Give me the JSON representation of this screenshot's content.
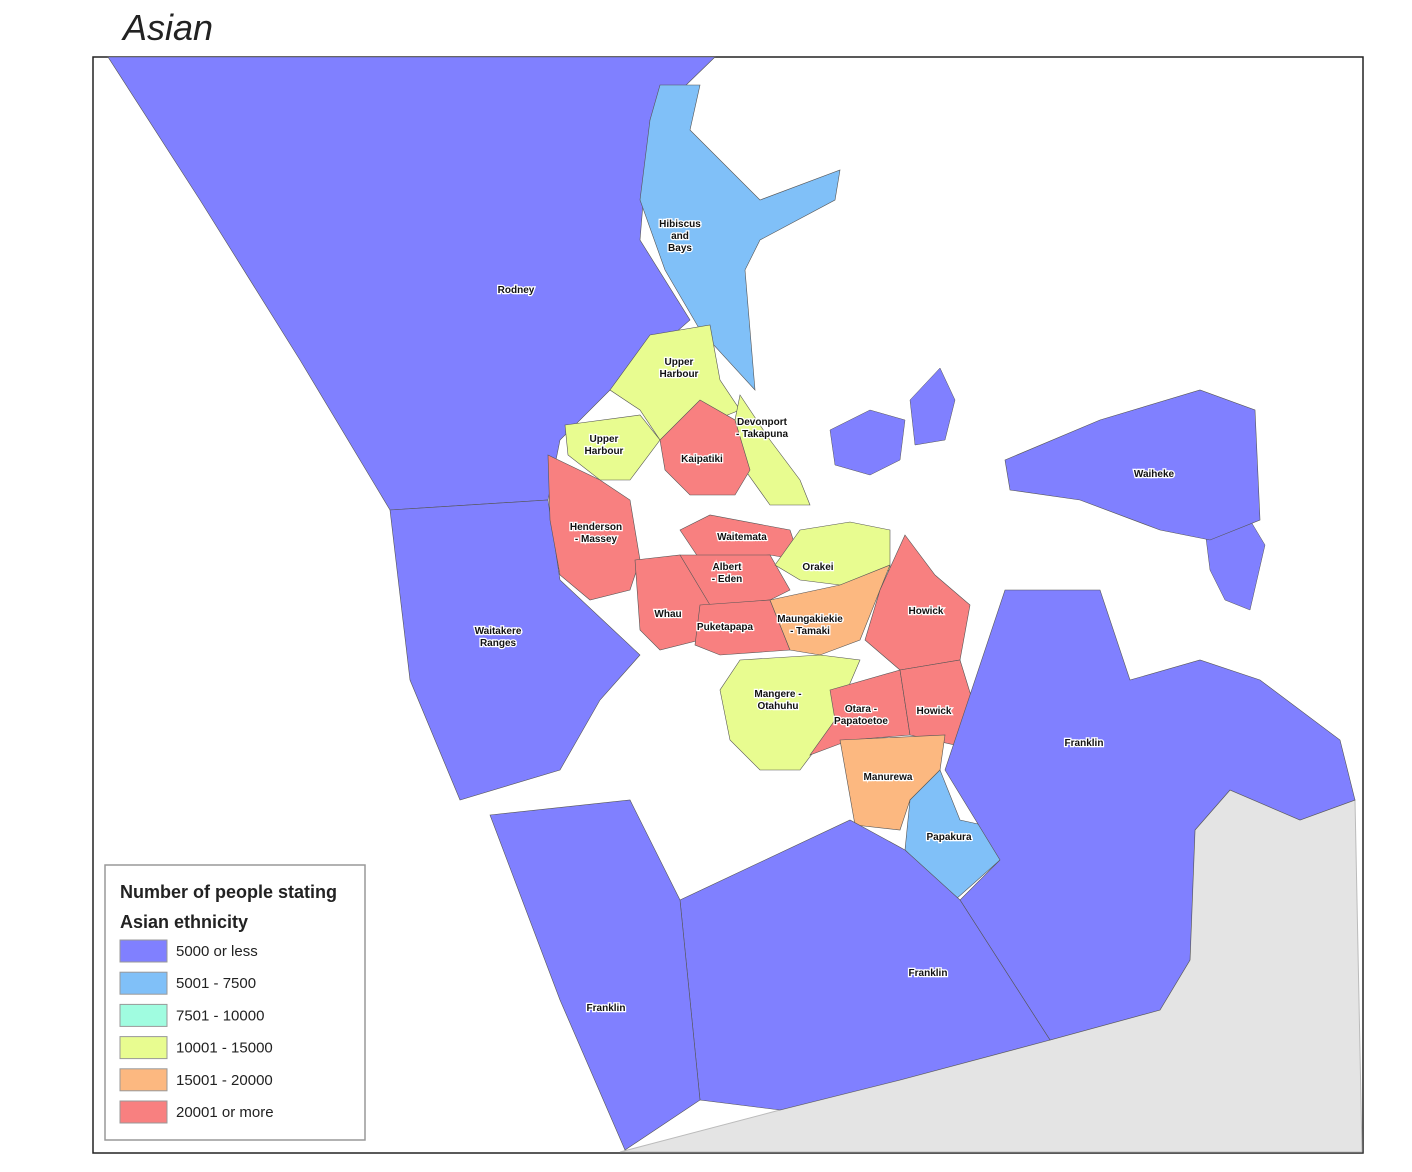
{
  "title": "Asian",
  "legend": {
    "title_lines": [
      "Number of people stating",
      "Asian ethnicity"
    ],
    "items": [
      {
        "label": "5000 or less",
        "color": "#8080ff"
      },
      {
        "label": "5001 - 7500",
        "color": "#80c0f8"
      },
      {
        "label": "7501 - 10000",
        "color": "#a0fce0"
      },
      {
        "label": "10001 - 15000",
        "color": "#e8fc90"
      },
      {
        "label": "15001 - 20000",
        "color": "#fcb880"
      },
      {
        "label": "20001 or more",
        "color": "#f88080"
      }
    ]
  },
  "regions": [
    {
      "label": [
        "Rodney"
      ],
      "class": 0
    },
    {
      "label": [
        "Waitakere",
        "Ranges"
      ],
      "class": 0
    },
    {
      "label": [
        "Hibiscus",
        "and",
        "Bays"
      ],
      "class": 1
    },
    {
      "label": [
        "Upper",
        "Harbour"
      ],
      "class": 3
    },
    {
      "label": [
        "Upper",
        "Harbour"
      ],
      "class": 3
    },
    {
      "label": [
        "Devonport",
        "- Takapuna"
      ],
      "class": 3
    },
    {
      "label": [
        "Kaipatiki"
      ],
      "class": 5
    },
    {
      "label": [
        "Henderson",
        "- Massey"
      ],
      "class": 5
    },
    {
      "label": [
        "Waitemata"
      ],
      "class": 5
    },
    {
      "label": [
        "Albert",
        "- Eden"
      ],
      "class": 5
    },
    {
      "label": [
        "Orakei"
      ],
      "class": 3
    },
    {
      "label": [
        "Whau"
      ],
      "class": 5
    },
    {
      "label": [
        "Puketapapa"
      ],
      "class": 5
    },
    {
      "label": [
        "Maungakiekie",
        "- Tamaki"
      ],
      "class": 4
    },
    {
      "label": [
        "Howick"
      ],
      "class": 5
    },
    {
      "label": [
        "Mangere -",
        "Otahuhu"
      ],
      "class": 3
    },
    {
      "label": [
        "Otara -",
        "Papatoetoe"
      ],
      "class": 5
    },
    {
      "label": [
        "Howick"
      ],
      "class": 5
    },
    {
      "label": [
        "Manurewa"
      ],
      "class": 4
    },
    {
      "label": [
        "Papakura"
      ],
      "class": 1
    },
    {
      "label": [
        "Waiheke"
      ],
      "class": 0
    },
    {
      "label": [
        "Franklin"
      ],
      "class": 0
    },
    {
      "label": [
        "Franklin"
      ],
      "class": 0
    },
    {
      "label": [
        "Franklin"
      ],
      "class": 0
    }
  ]
}
